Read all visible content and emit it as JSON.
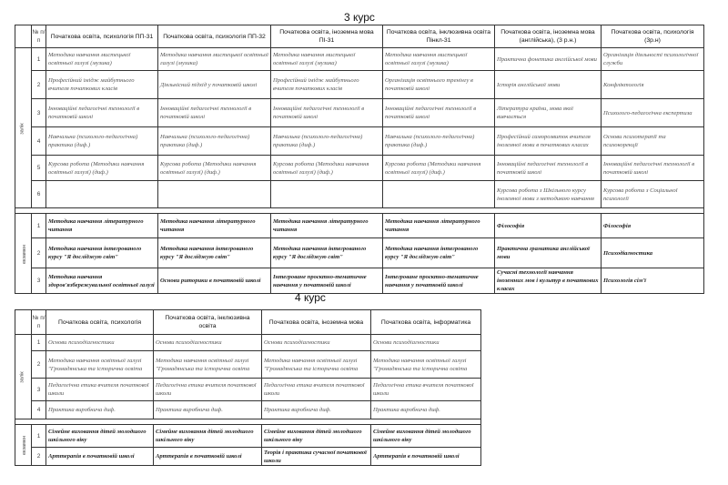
{
  "course3": {
    "title": "3 курс",
    "form_header": "форма контролю",
    "num_header": "№ п/п",
    "columns": [
      "Початкова освіта,  психологія     ПП-31",
      "Початкова освіта,  психологія     ПП-32",
      "Початкова освіта,            іноземна мова ПІ-31",
      "Початкова освіта, інклюзивна освіта Пінкл-31",
      "Початкова освіта, іноземна мова (англійська),         (3 р.н.)",
      "Початкова освіта, психологія (3р.н)"
    ],
    "zalik_label": "залік",
    "zalik": [
      {
        "n": "1",
        "cells": [
          "Методика навчання мистецької освітньої галузі (музика)",
          "Методика навчання мистецької освітньої галузі (музика)",
          "Методика навчання мистецької освітньої галузі (музика)",
          "Методика навчання мистецької освітньої галузі (музика)",
          "Практична фонетика англійської мови",
          "Організація діяльності психологічної служби"
        ]
      },
      {
        "n": "2",
        "cells": [
          "Професійний імідж майбутнього вчителя початкових класів",
          "Діяльнісний підхід у початковій школі",
          "Професійний імідж майбутнього вчителя початкових класів",
          "Організація освітнього тренінгу в початковій школі",
          "Історія англійської мови",
          "Конфліктологія"
        ]
      },
      {
        "n": "3",
        "cells": [
          "Інноваційні педагогічні технології в початковій школі",
          "Інноваційні педагогічні технології в початковій школі",
          "Інноваційні педагогічні технології в початковій школі",
          "Інноваційні педагогічні технології в початковій школі",
          "Література країни, мова якої вивчається",
          "Психолого-педагогічна експертиза"
        ]
      },
      {
        "n": "4",
        "cells": [
          "Навчальна (психолого-педагогічна) практика (диф.)",
          "Навчальна (психолого-педагогічна) практика (диф.)",
          "Навчальна (психолого-педагогічна) практика (диф.)",
          "Навчальна (психолого-педагогічна) практика (диф.)",
          "Професійний саморозвиток вчителя іноземної мови в початкових класах",
          "Основи психотерапії та психокорекції"
        ]
      },
      {
        "n": "5",
        "cells": [
          "Курсова робота (Методики навчання освітньої галузі) (диф.)",
          "Курсова робота (Методики навчання освітньої галузі) (диф.)",
          "Курсова робота (Методики навчання освітньої галузі) (диф.)",
          "Курсова робота (Методики навчання освітньої галузі) (диф.)",
          "Інноваційні педагогічні технології в початковій школі",
          "Інноваційні педагогічні технології в початковій школі"
        ]
      },
      {
        "n": "6",
        "cells": [
          "",
          "",
          "",
          "",
          "Курсова робота з Шкільного курсу іноземної мови з методикою навчання",
          "Курсова робота з Соціальної психології"
        ]
      }
    ],
    "exam_label": "екзамен",
    "exam": [
      {
        "n": "1",
        "cells": [
          "Методика навчання літературного читання",
          "Методика навчання літературного читання",
          "Методика навчання літературного читання",
          "Методика навчання літературного читання",
          "Філософія",
          "Філософія"
        ]
      },
      {
        "n": "2",
        "cells": [
          "Методика навчання інтегрованого курсу \"Я досліджую світ\"",
          "Методика навчання інтегрованого курсу \"Я досліджую світ\"",
          "Методика навчання інтегрованого курсу \"Я досліджую світ\"",
          "Методика навчання інтегрованого курсу \"Я досліджую світ\"",
          "Практична граматика англійської мови",
          "Психодіагностика"
        ]
      },
      {
        "n": "3",
        "cells": [
          "Методика навчання здоров'язбережувальної освітньої галузі",
          "Основи риторики в початковій школі",
          "Інтегроване проєктно-тематичне навчання у початковій школі",
          "Інтегроване проєктно-тематичне навчання у початковій школі",
          "Сучасні технології навчання іноземних мов і культур в початкових класах",
          "Психологія сім'ї"
        ]
      }
    ]
  },
  "course4": {
    "title": "4 курс",
    "form_header": "форма контролю",
    "num_header": "№ п/п",
    "columns": [
      "Початкова освіта,  психологія",
      "Початкова освіта, інклюзивна освіта",
      "Початкова освіта, іноземна мова",
      "Початкова освіта, інформатика"
    ],
    "zalik_label": "залік",
    "zalik": [
      {
        "n": "1",
        "cells": [
          "Основи психодіагностики",
          "Основи психодіагностики",
          "Основи психодіагностики",
          "Основи психодіагностики"
        ]
      },
      {
        "n": "2",
        "cells": [
          "Методика навчання освітньої галузі \"Громадянська та історична освіта",
          "Методика навчання освітньої галузі \"Громадянська та історична освіта",
          "Методика навчання освітньої галузі \"Громадянська та історична освіта",
          "Методика навчання освітньої галузі \"Громадянська та історична освіта"
        ]
      },
      {
        "n": "3",
        "cells": [
          "Педагогічна етика вчителя початкової школи",
          "Педагогічна етика вчителя початкової школи",
          "Педагогічна етика вчителя початкової школи",
          "Педагогічна етика вчителя початкової школи"
        ]
      },
      {
        "n": "4",
        "cells": [
          "Практика виробнича диф.",
          "Практика виробнича диф.",
          "Практика виробнича диф.",
          "Практика виробнича диф."
        ]
      }
    ],
    "exam_label": "екзамен",
    "exam": [
      {
        "n": "1",
        "cells": [
          "Сімейне виховання дітей молодшого шкільного віку",
          "Сімейне виховання дітей молодшого шкільного віку",
          "Сімейне виховання дітей молодшого шкільного віку",
          "Сімейне виховання дітей молодшого шкільного віку"
        ]
      },
      {
        "n": "2",
        "cells": [
          "Арттерапія в початковій школі",
          "Арттерапія в початковій школі",
          "Теорія і практика сучасної початкової школи",
          "Арттерапія в початковій школі"
        ]
      }
    ]
  }
}
